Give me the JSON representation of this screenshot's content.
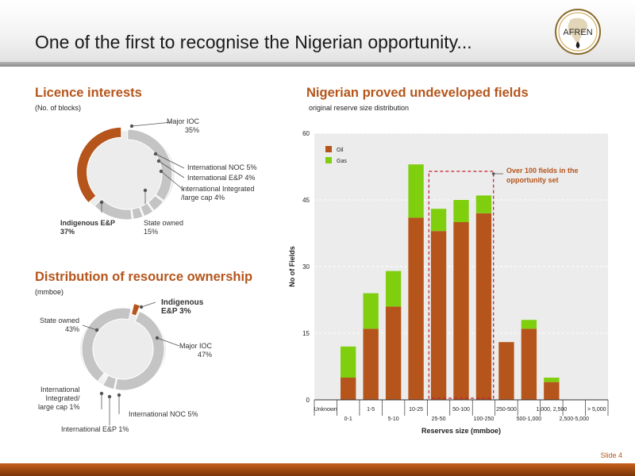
{
  "slide": {
    "title": "One of the first to recognise the Nigerian opportunity...",
    "logo_text": "AFREN",
    "slide_number": "Slide 4"
  },
  "colors": {
    "oil": "#b5551b",
    "gas": "#7fcf0f",
    "accent": "#b5551b",
    "donut_grey": "#c4c4c4"
  },
  "licence": {
    "title": "Licence interests",
    "subtitle": "(No. of blocks)",
    "labels": {
      "major_ioc": "Major IOC",
      "major_ioc_pct": "35%",
      "intl_noc": "International NOC 5%",
      "intl_ep": "International E&P 4%",
      "intl_integrated_1": "International Integrated",
      "intl_integrated_2": "/large cap 4%",
      "state_owned": "State owned",
      "state_owned_pct": "15%",
      "indigenous": "Indigenous E&P",
      "indigenous_pct": "37%"
    }
  },
  "resource": {
    "title": "Distribution of resource ownership",
    "subtitle": "(mmboe)",
    "labels": {
      "indigenous_1": "Indigenous",
      "indigenous_2": "E&P 3%",
      "state_owned": "State owned",
      "state_owned_pct": "43%",
      "major_ioc": "Major IOC",
      "major_ioc_pct": "47%",
      "intl_integrated_1": "International",
      "intl_integrated_2": "Integrated/",
      "intl_integrated_3": "large cap  1%",
      "intl_noc": "International NOC  5%",
      "intl_ep": "International E&P  1%"
    }
  },
  "chart_data": [
    {
      "type": "pie",
      "title": "Licence interests",
      "subtitle": "(No. of blocks)",
      "labels": [
        "Major IOC",
        "International NOC",
        "International E&P",
        "International Integrated /large cap",
        "State owned",
        "Indigenous E&P"
      ],
      "values": [
        35,
        5,
        4,
        4,
        15,
        37
      ],
      "highlight": "Indigenous E&P"
    },
    {
      "type": "pie",
      "title": "Distribution of resource ownership",
      "subtitle": "(mmboe)",
      "labels": [
        "Indigenous E&P",
        "Major IOC",
        "International NOC",
        "International E&P",
        "International Integrated/ large cap",
        "State owned"
      ],
      "values": [
        3,
        47,
        5,
        1,
        1,
        43
      ],
      "highlight": "Indigenous E&P"
    },
    {
      "type": "bar",
      "stacked": true,
      "title": "Nigerian proved undeveloped fields",
      "subtitle": "original reserve size distribution",
      "xlabel": "Reserves size (mmboe)",
      "ylabel": "No of Fields",
      "ylim": [
        0,
        60
      ],
      "yticks": [
        0,
        15,
        30,
        45,
        60
      ],
      "categories": [
        "Unknown",
        "0-1",
        "1-5",
        "5-10",
        "10-25",
        "25-50",
        "50-100",
        "100-250",
        "250-500",
        "500-1,000",
        "1,000, 2,500",
        "2,500-5,000",
        "> 5,000"
      ],
      "series": [
        {
          "name": "Oil",
          "values": [
            0,
            5,
            16,
            21,
            41,
            38,
            40,
            42,
            13,
            16,
            4,
            0,
            0
          ]
        },
        {
          "name": "Gas",
          "values": [
            0,
            7,
            8,
            8,
            12,
            5,
            5,
            4,
            0,
            2,
            1,
            0,
            0
          ]
        }
      ],
      "legend_position": "top-left",
      "annotation": {
        "text_1": "Over 100 fields in the",
        "text_2": "opportunity set"
      },
      "grid": true
    }
  ]
}
